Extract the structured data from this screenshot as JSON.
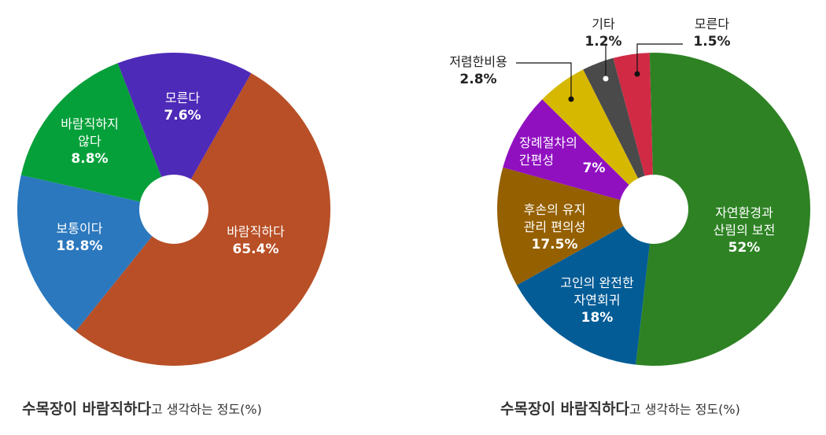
{
  "chart_data": [
    {
      "type": "pie",
      "title_bold": "수목장이  바람직하다",
      "title_rest": "고 생각하는 정도(%)",
      "labels": [
        "바람직하다",
        "보통이다",
        "바람직하지 않다",
        "모른다"
      ],
      "values": [
        65.4,
        18.8,
        8.8,
        7.6
      ],
      "value_labels": [
        "65.4%",
        "18.8%",
        "8.8%",
        "7.6%"
      ],
      "colors": [
        "#b84f26",
        "#2b78be",
        "#06a03a",
        "#4e2ab8"
      ]
    },
    {
      "type": "pie",
      "title_bold": "수목장이  바람직하다",
      "title_rest": "고 생각하는 정도(%)",
      "labels": [
        "자연환경과 산림의 보전",
        "고인의 완전한 자연회귀",
        "후손의 유지 관리 편의성",
        "장례절차의 간편성",
        "저렴한비용",
        "기타",
        "모른다"
      ],
      "values": [
        52,
        18,
        17.5,
        7,
        2.8,
        1.2,
        1.5
      ],
      "value_labels": [
        "52%",
        "18%",
        "17.5%",
        "7%",
        "2.8%",
        "1.2%",
        "1.5%"
      ],
      "colors": [
        "#2e8224",
        "#035c96",
        "#956000",
        "#9010c0",
        "#d7b800",
        "#4a4a4a",
        "#d02a45"
      ]
    }
  ],
  "left_labels": {
    "l0a": "바람직하다",
    "l1a": "보통이다",
    "l2a": "바람직하지",
    "l2b": "않다",
    "l3a": "모른다"
  },
  "right_labels": {
    "r0a": "자연환경과",
    "r0b": "산림의 보전",
    "r1a": "고인의 완전한",
    "r1b": "자연회귀",
    "r2a": "후손의 유지",
    "r2b": "관리 편의성",
    "r3a": "장례절차의",
    "r3b": "간편성",
    "r4a": "저렴한비용",
    "r5a": "기타",
    "r6a": "모른다"
  }
}
